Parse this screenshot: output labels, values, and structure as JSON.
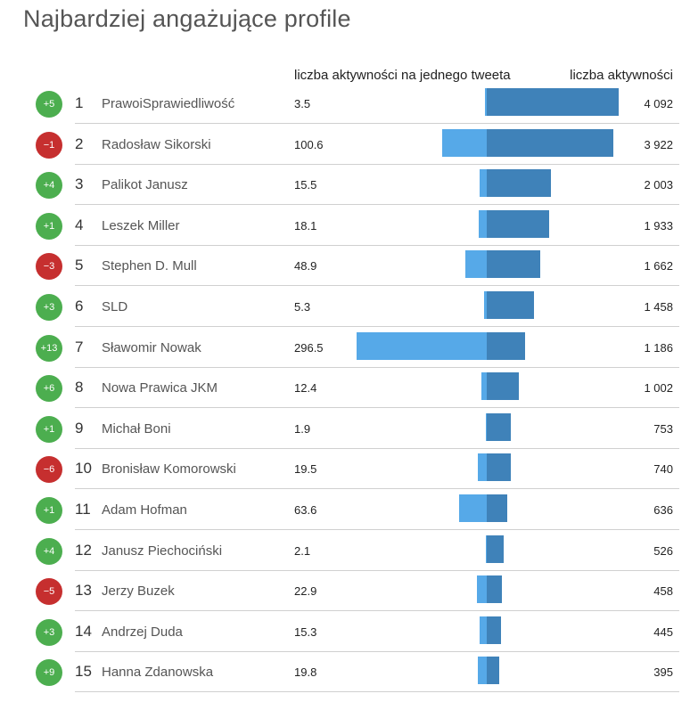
{
  "title": "Najbardziej angażujące profile",
  "colors": {
    "bar_left": "#56a9e8",
    "bar_right": "#3f82b9",
    "badge_up": "#4cae4f",
    "badge_down": "#c62f2f"
  },
  "chart_data": {
    "type": "bar",
    "title": "Najbardziej angażujące profile",
    "series": [
      {
        "name": "liczba aktywności na jednego tweeta",
        "values": [
          3.5,
          100.6,
          15.5,
          18.1,
          48.9,
          5.3,
          296.5,
          12.4,
          1.9,
          19.5,
          63.6,
          2.1,
          22.9,
          15.3,
          19.8
        ]
      },
      {
        "name": "liczba aktywności",
        "values": [
          4092,
          3922,
          2003,
          1933,
          1662,
          1458,
          1186,
          1002,
          753,
          740,
          636,
          526,
          458,
          445,
          395
        ]
      }
    ],
    "categories": [
      "PrawoiSprawiedliwość",
      "Radosław Sikorski",
      "Palikot Janusz",
      "Leszek Miller",
      "Stephen D. Mull",
      "SLD",
      "Sławomir Nowak",
      "Nowa Prawica JKM",
      "Michał Boni",
      "Bronisław Komorowski",
      "Adam Hofman",
      "Janusz Piechociński",
      "Jerzy Buzek",
      "Andrzej Duda",
      "Hanna Zdanowska"
    ],
    "xlabel": "",
    "ylabel": "",
    "rows": [
      {
        "rank": "1",
        "change": "+5",
        "name": "PrawoiSprawiedliwość",
        "per_tweet": 3.5,
        "per_tweet_label": "3.5",
        "total": 4092,
        "total_label": "4 092"
      },
      {
        "rank": "2",
        "change": "−1",
        "name": "Radosław Sikorski",
        "per_tweet": 100.6,
        "per_tweet_label": "100.6",
        "total": 3922,
        "total_label": "3 922"
      },
      {
        "rank": "3",
        "change": "+4",
        "name": "Palikot Janusz",
        "per_tweet": 15.5,
        "per_tweet_label": "15.5",
        "total": 2003,
        "total_label": "2 003"
      },
      {
        "rank": "4",
        "change": "+1",
        "name": "Leszek Miller",
        "per_tweet": 18.1,
        "per_tweet_label": "18.1",
        "total": 1933,
        "total_label": "1 933"
      },
      {
        "rank": "5",
        "change": "−3",
        "name": "Stephen D. Mull",
        "per_tweet": 48.9,
        "per_tweet_label": "48.9",
        "total": 1662,
        "total_label": "1 662"
      },
      {
        "rank": "6",
        "change": "+3",
        "name": "SLD",
        "per_tweet": 5.3,
        "per_tweet_label": "5.3",
        "total": 1458,
        "total_label": "1 458"
      },
      {
        "rank": "7",
        "change": "+13",
        "name": "Sławomir Nowak",
        "per_tweet": 296.5,
        "per_tweet_label": "296.5",
        "total": 1186,
        "total_label": "1 186"
      },
      {
        "rank": "8",
        "change": "+6",
        "name": "Nowa Prawica JKM",
        "per_tweet": 12.4,
        "per_tweet_label": "12.4",
        "total": 1002,
        "total_label": "1 002"
      },
      {
        "rank": "9",
        "change": "+1",
        "name": "Michał Boni",
        "per_tweet": 1.9,
        "per_tweet_label": "1.9",
        "total": 753,
        "total_label": "753"
      },
      {
        "rank": "10",
        "change": "−6",
        "name": "Bronisław Komorowski",
        "per_tweet": 19.5,
        "per_tweet_label": "19.5",
        "total": 740,
        "total_label": "740"
      },
      {
        "rank": "11",
        "change": "+1",
        "name": "Adam Hofman",
        "per_tweet": 63.6,
        "per_tweet_label": "63.6",
        "total": 636,
        "total_label": "636"
      },
      {
        "rank": "12",
        "change": "+4",
        "name": "Janusz Piechociński",
        "per_tweet": 2.1,
        "per_tweet_label": "2.1",
        "total": 526,
        "total_label": "526"
      },
      {
        "rank": "13",
        "change": "−5",
        "name": "Jerzy Buzek",
        "per_tweet": 22.9,
        "per_tweet_label": "22.9",
        "total": 458,
        "total_label": "458"
      },
      {
        "rank": "14",
        "change": "+3",
        "name": "Andrzej Duda",
        "per_tweet": 15.3,
        "per_tweet_label": "15.3",
        "total": 445,
        "total_label": "445"
      },
      {
        "rank": "15",
        "change": "+9",
        "name": "Hanna Zdanowska",
        "per_tweet": 19.8,
        "per_tweet_label": "19.8",
        "total": 395,
        "total_label": "395"
      }
    ]
  },
  "columns": {
    "per_tweet": "liczba aktywności na jednego tweeta",
    "total": "liczba aktywności"
  }
}
